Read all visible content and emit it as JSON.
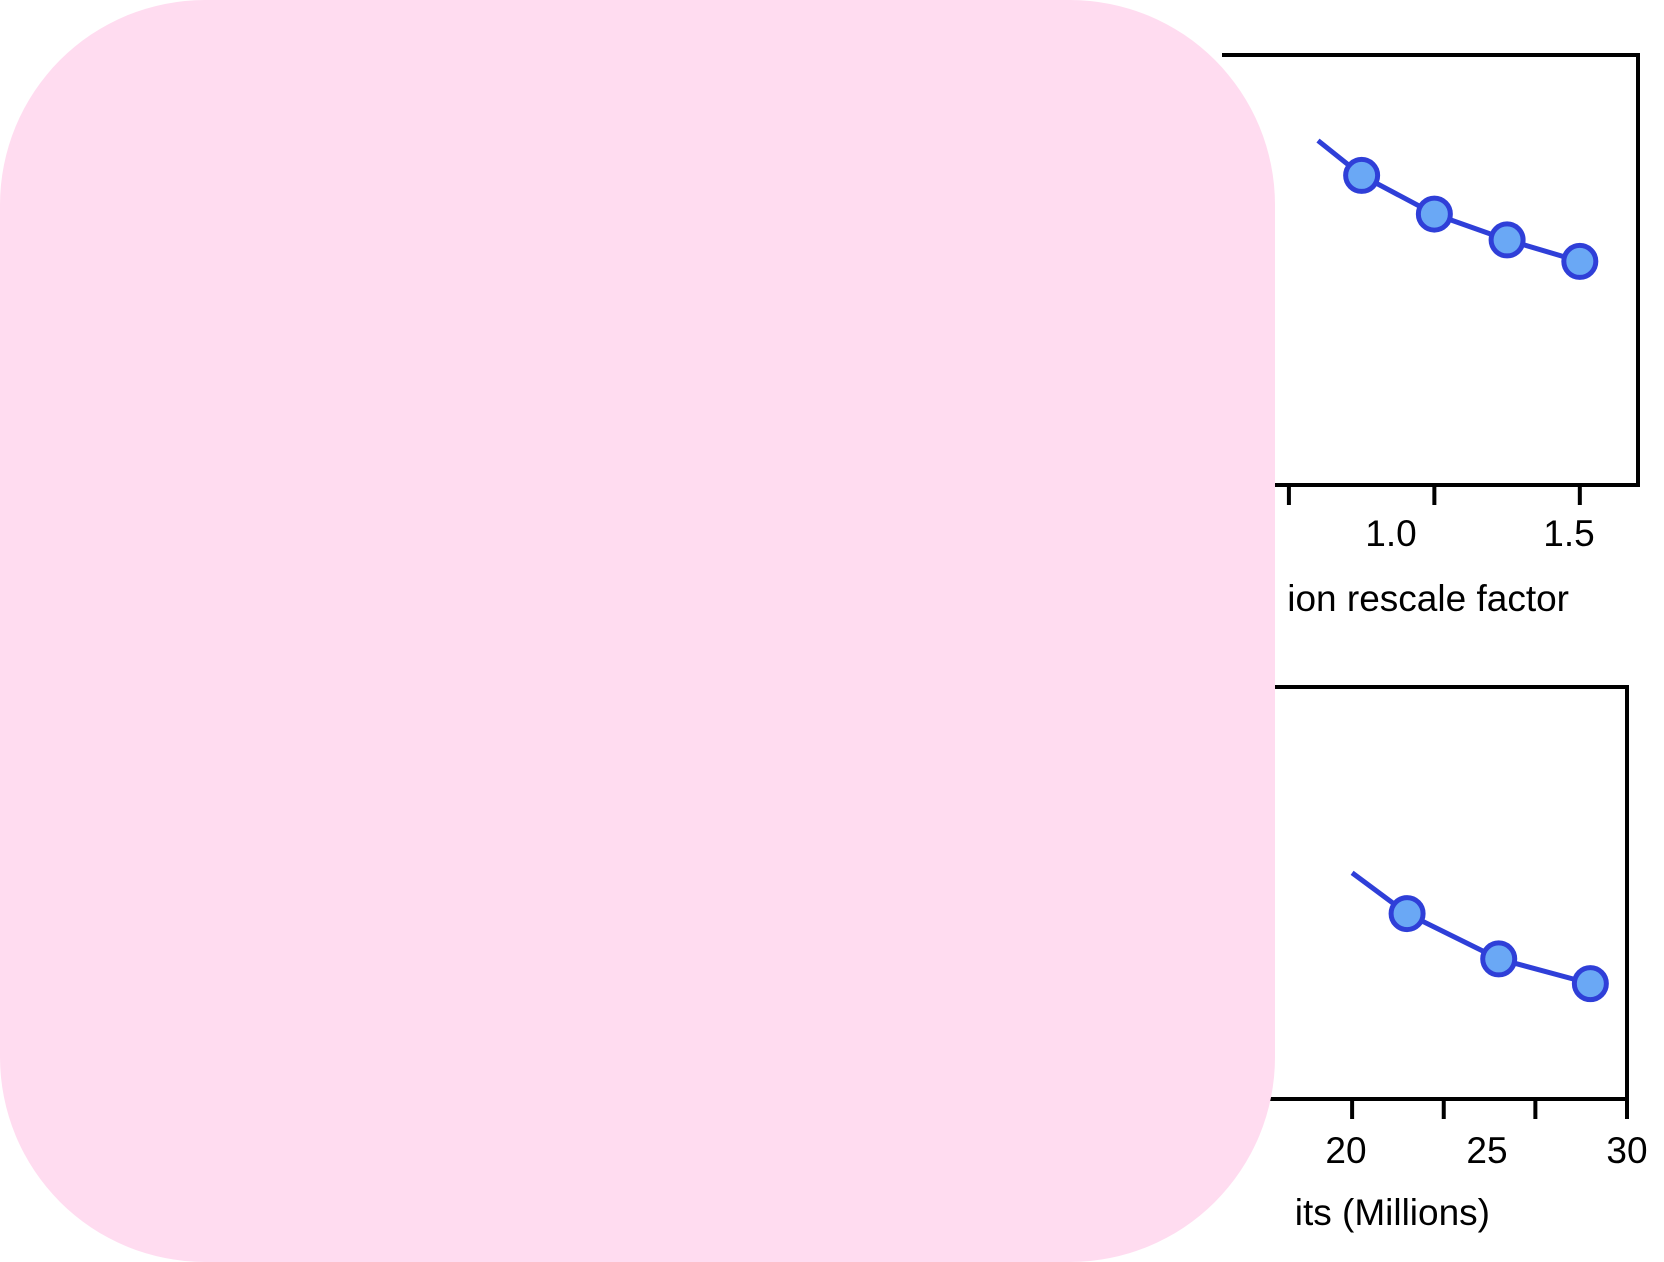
{
  "chart_data": [
    {
      "type": "line",
      "x": [
        0.75,
        1.0,
        1.25,
        1.5
      ],
      "xlim": [
        0.27,
        1.7
      ],
      "xticks": [
        0.5,
        1.0,
        1.5
      ],
      "xtick_labels_visible": [
        "1.0",
        "1.5"
      ],
      "xlabel_visible": "ion rescale factor",
      "ylim": [
        0,
        1
      ],
      "series": [
        {
          "values": [
            0.72,
            0.63,
            0.57,
            0.52
          ]
        }
      ],
      "grid": false,
      "colors": {
        "line": "#2f3fd8",
        "marker_fill": "#6aa8f5"
      }
    },
    {
      "type": "line",
      "x": [
        18,
        23,
        28
      ],
      "xlim": [
        7.9,
        30
      ],
      "xticks": [
        10,
        15,
        20,
        25,
        30
      ],
      "xtick_labels_visible": [
        "20",
        "25",
        "30"
      ],
      "xlabel_visible": "its (Millions)",
      "ylim": [
        0,
        1
      ],
      "series": [
        {
          "values": [
            0.45,
            0.34,
            0.28
          ]
        }
      ],
      "grid": false,
      "colors": {
        "line": "#2f3fd8",
        "marker_fill": "#6aa8f5"
      }
    }
  ],
  "overlay": {
    "color": "#ffdcf0"
  }
}
